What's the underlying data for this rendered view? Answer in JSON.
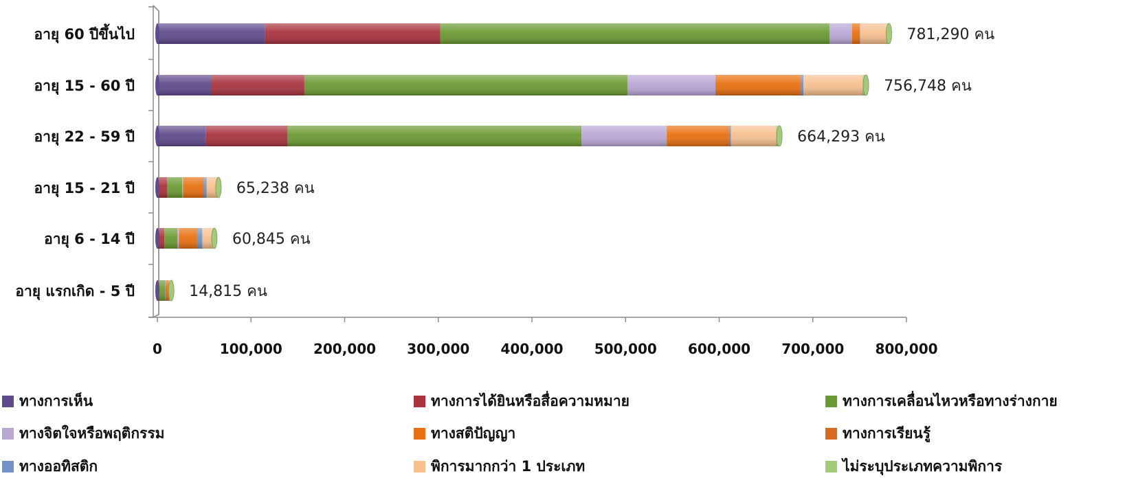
{
  "chart_data": {
    "type": "bar",
    "orientation": "horizontal",
    "stacked": true,
    "categories": [
      "อายุ 60 ปีขึ้นไป",
      "อายุ 15 - 60  ปี",
      "อายุ 22 - 59  ปี",
      "อายุ 15 - 21  ปี",
      "อายุ 6 - 14 ปี",
      "อายุ แรกเกิด - 5 ปี"
    ],
    "totals": [
      "781,290 คน",
      "756,748 คน",
      "664,293 คน",
      "65,238 คน",
      "60,845 คน",
      "14,815 คน"
    ],
    "series": [
      {
        "name": "ทางการเห็น",
        "color": "#5f4a8b",
        "values": [
          115000,
          58000,
          52000,
          2000,
          1500,
          500
        ]
      },
      {
        "name": "ทางการได้ยินหรือสื่อความหมาย",
        "color": "#a8323e",
        "values": [
          187000,
          99000,
          87000,
          8500,
          6000,
          1500
        ]
      },
      {
        "name": "ทางการเคลื่อนไหวหรือทางร่างกาย",
        "color": "#6b9a32",
        "values": [
          416000,
          345000,
          314000,
          16000,
          14000,
          6500
        ]
      },
      {
        "name": "ทางจิตใจหรือพฤติกรรม",
        "color": "#b9a7d6",
        "values": [
          24000,
          94000,
          91000,
          1000,
          1500,
          300
        ]
      },
      {
        "name": "ทางสติปัญญา",
        "color": "#e8700f",
        "values": [
          7000,
          90000,
          66000,
          21000,
          19000,
          3000
        ]
      },
      {
        "name": "ทางการเรียนรู้",
        "color": "#d96a22",
        "values": [
          1000,
          1000,
          1000,
          1000,
          1000,
          300
        ]
      },
      {
        "name": "ทางออทิสติก",
        "color": "#6f93c6",
        "values": [
          500,
          3000,
          1500,
          3000,
          5000,
          500
        ]
      },
      {
        "name": "พิการมากกว่า 1 ประเภท",
        "color": "#f7c08f",
        "values": [
          28500,
          63000,
          48000,
          12000,
          12500,
          2000
        ]
      },
      {
        "name": "ไม่ระบุประเภทความพิการ",
        "color": "#a4c97a",
        "values": [
          2290,
          3748,
          3793,
          738,
          345,
          215
        ]
      }
    ],
    "xlim": [
      0,
      800000
    ],
    "xticks": [
      "0",
      "100,000",
      "200,000",
      "300,000",
      "400,000",
      "500,000",
      "600,000",
      "700,000",
      "800,000"
    ],
    "xtick_values": [
      0,
      100000,
      200000,
      300000,
      400000,
      500000,
      600000,
      700000,
      800000
    ],
    "legend_position": "bottom",
    "grid": false
  }
}
